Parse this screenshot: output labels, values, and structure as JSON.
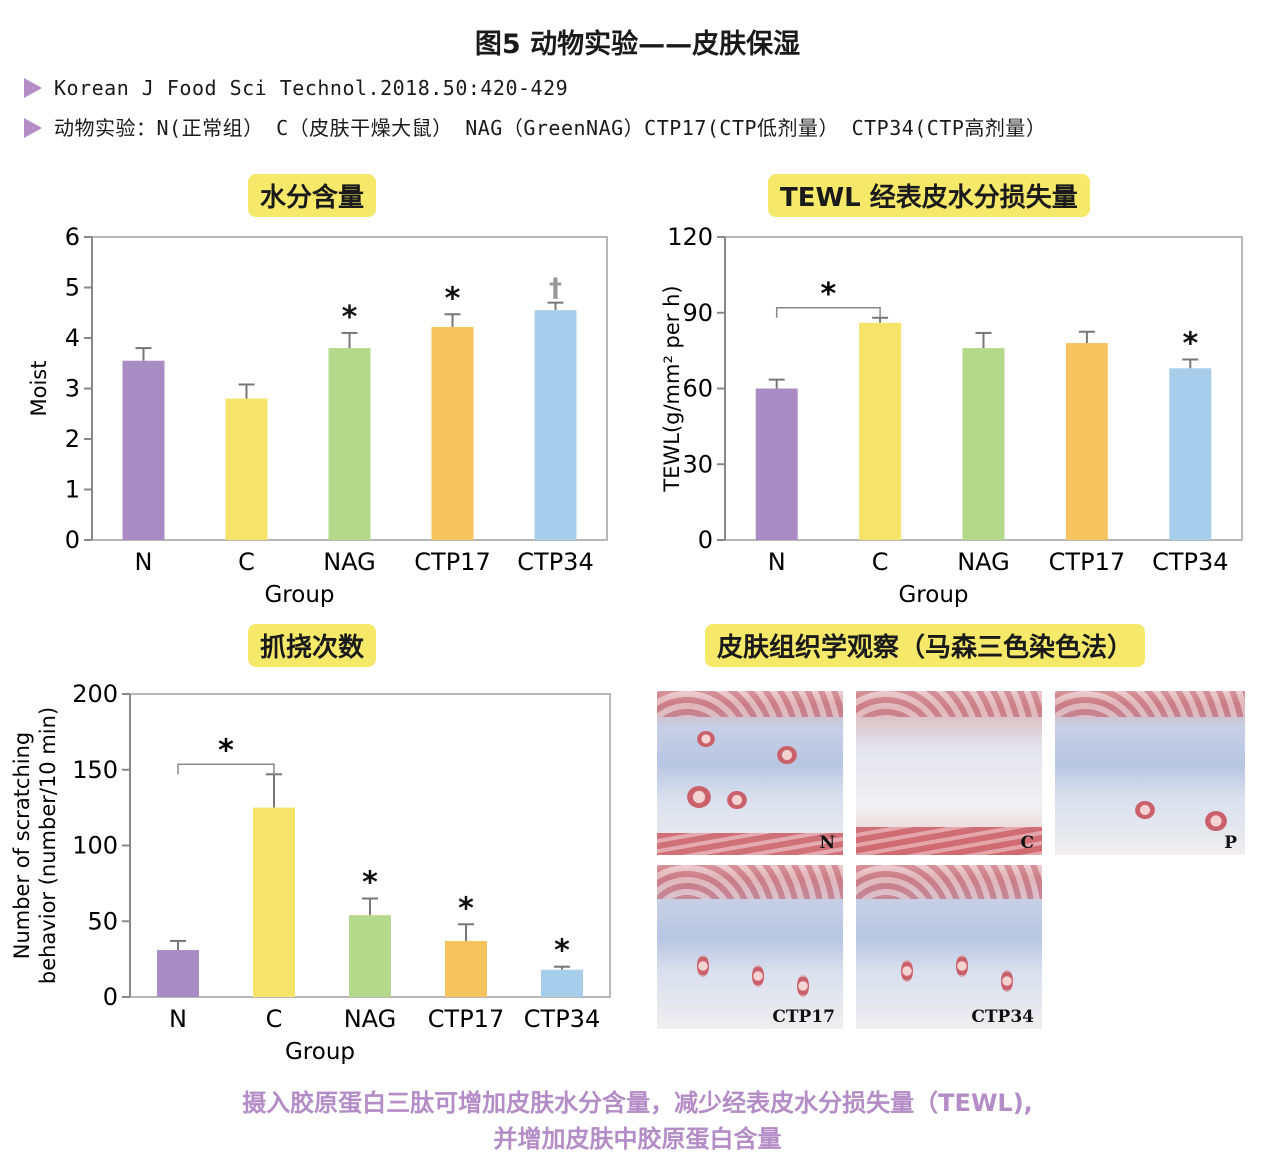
{
  "figure_title": "图5 动物实验——皮肤保湿",
  "notes": [
    "Korean J Food Sci Technol.2018.50:420-429",
    "动物实验：N(正常组） C（皮肤干燥大鼠） NAG（GreenNAG）CTP17(CTP低剂量） CTP34(CTP高剂量）"
  ],
  "panels": {
    "moist": "水分含量",
    "tewl": "TEWL 经表皮水分损失量",
    "scratch": "抓挠次数",
    "histology": "皮肤组织学观察（马森三色染色法）"
  },
  "colors": {
    "N": "#a98cc4",
    "C": "#f5e36a",
    "NAG": "#b4d98a",
    "CTP17": "#f6c45e",
    "CTP34": "#a6cde9",
    "panel_bg": "#f6e96a",
    "caption": "#b48cc6"
  },
  "chart_data": [
    {
      "type": "bar",
      "categories": [
        "N",
        "C",
        "NAG",
        "CTP17",
        "CTP34"
      ],
      "values": [
        3.55,
        2.8,
        3.8,
        4.22,
        4.55
      ],
      "errors": [
        0.25,
        0.28,
        0.3,
        0.25,
        0.15
      ],
      "markers": [
        "",
        "",
        "*",
        "*",
        "†"
      ],
      "xlabel": "Group",
      "ylabel": "Moist",
      "ylim": [
        0,
        6
      ],
      "yticks": [
        0,
        1,
        2,
        3,
        4,
        5,
        6
      ],
      "grid": false
    },
    {
      "type": "bar",
      "categories": [
        "N",
        "C",
        "NAG",
        "CTP17",
        "CTP34"
      ],
      "values": [
        60,
        86,
        76,
        78,
        68
      ],
      "errors": [
        3.5,
        2,
        6,
        4.5,
        3.5
      ],
      "markers": [
        "",
        "",
        "",
        "",
        "*"
      ],
      "bracket": {
        "from": "N",
        "to": "C",
        "label": "*"
      },
      "xlabel": "Group",
      "ylabel": "TEWL(g/mm² per h)",
      "ylim": [
        0,
        120
      ],
      "yticks": [
        0,
        30,
        60,
        90,
        120
      ],
      "grid": false
    },
    {
      "type": "bar",
      "categories": [
        "N",
        "C",
        "NAG",
        "CTP17",
        "CTP34"
      ],
      "values": [
        31,
        125,
        54,
        37,
        18
      ],
      "errors": [
        6,
        22,
        11,
        11,
        2
      ],
      "markers": [
        "",
        "",
        "*",
        "*",
        "*"
      ],
      "bracket": {
        "from": "N",
        "to": "C",
        "label": "*"
      },
      "xlabel": "Group",
      "ylabel": [
        "Number of scratching",
        "behavior (number/10 min)"
      ],
      "ylim": [
        0,
        200
      ],
      "yticks": [
        0,
        50,
        100,
        150,
        200
      ],
      "grid": false
    }
  ],
  "histology_labels": [
    "N",
    "C",
    "P",
    "CTP17",
    "CTP34"
  ],
  "caption": [
    "摄入胶原蛋白三肽可增加皮肤水分含量，减少经表皮水分损失量（TEWL),",
    "并增加皮肤中胶原蛋白含量"
  ]
}
